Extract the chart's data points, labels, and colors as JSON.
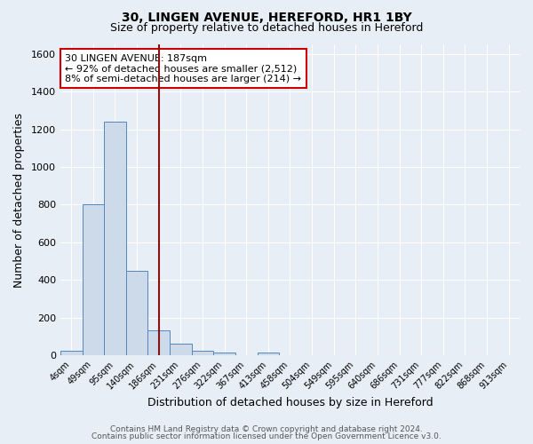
{
  "title1": "30, LINGEN AVENUE, HEREFORD, HR1 1BY",
  "title2": "Size of property relative to detached houses in Hereford",
  "xlabel": "Distribution of detached houses by size in Hereford",
  "ylabel": "Number of detached properties",
  "bin_labels": [
    "4sqm",
    "49sqm",
    "95sqm",
    "140sqm",
    "186sqm",
    "231sqm",
    "276sqm",
    "322sqm",
    "367sqm",
    "413sqm",
    "458sqm",
    "504sqm",
    "549sqm",
    "595sqm",
    "640sqm",
    "686sqm",
    "731sqm",
    "777sqm",
    "822sqm",
    "868sqm",
    "913sqm"
  ],
  "bin_values": [
    25,
    800,
    1240,
    450,
    135,
    62,
    25,
    15,
    0,
    15,
    0,
    0,
    0,
    0,
    0,
    0,
    0,
    0,
    0,
    0,
    0
  ],
  "bar_color": "#ccdaea",
  "bar_edge_color": "#5588bb",
  "vline_color": "#8b1010",
  "annotation_text": "30 LINGEN AVENUE: 187sqm\n← 92% of detached houses are smaller (2,512)\n8% of semi-detached houses are larger (214) →",
  "annotation_box_color": "white",
  "annotation_box_edge_color": "#cc0000",
  "ylim": [
    0,
    1650
  ],
  "yticks": [
    0,
    200,
    400,
    600,
    800,
    1000,
    1200,
    1400,
    1600
  ],
  "background_color": "#e8eef5",
  "grid_color": "white",
  "footer1": "Contains HM Land Registry data © Crown copyright and database right 2024.",
  "footer2": "Contains public sector information licensed under the Open Government Licence v3.0."
}
